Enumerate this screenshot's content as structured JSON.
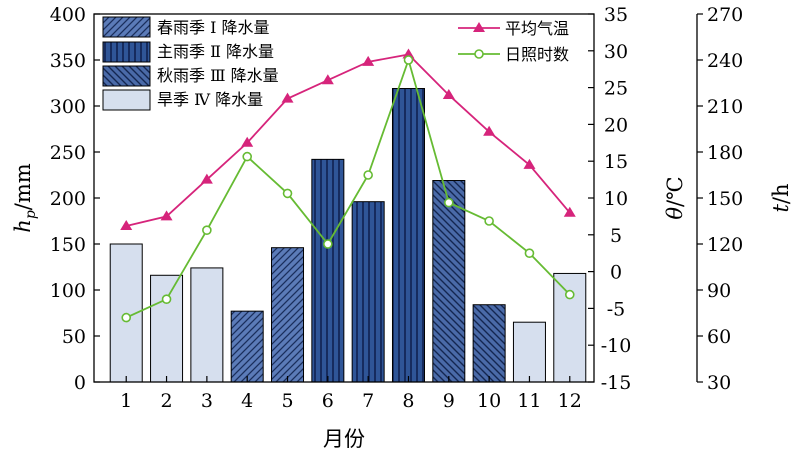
{
  "chart_data": {
    "type": "bar",
    "categories": [
      "1",
      "2",
      "3",
      "4",
      "5",
      "6",
      "7",
      "8",
      "9",
      "10",
      "11",
      "12"
    ],
    "xlabel": "月份",
    "ylabel_left": {
      "main": "h",
      "sub": "p",
      "unit": "/mm"
    },
    "ylabel_mid": {
      "symbol": "θ",
      "unit": "/℃"
    },
    "ylabel_right": {
      "symbol": "t",
      "unit": "/h"
    },
    "ylim_left": [
      0,
      400
    ],
    "ylim_mid": [
      -15,
      35
    ],
    "ylim_right": [
      30,
      270
    ],
    "yticks_left": [
      0,
      50,
      100,
      150,
      200,
      250,
      300,
      350,
      400
    ],
    "yticks_mid": [
      -15,
      -10,
      -5,
      0,
      5,
      10,
      15,
      20,
      25,
      30,
      35
    ],
    "yticks_right": [
      30,
      60,
      90,
      120,
      150,
      180,
      210,
      240,
      270
    ],
    "grid": false,
    "legend_placement": "top-left and top-right",
    "bar_series": [
      {
        "name": "春雨季 Ⅰ 降水量",
        "months": [
          4,
          5
        ],
        "values": [
          77,
          146
        ],
        "fill": "#5b7bb8",
        "pattern": "diag-fwd"
      },
      {
        "name": "主雨季 Ⅱ 降水量",
        "months": [
          6,
          7,
          8
        ],
        "values": [
          242,
          196,
          319
        ],
        "fill": "#2f5597",
        "pattern": "vertical"
      },
      {
        "name": "秋雨季 Ⅲ 降水量",
        "months": [
          9,
          10
        ],
        "values": [
          219,
          84
        ],
        "fill": "#4a6aa8",
        "pattern": "diag-back"
      },
      {
        "name": "旱季 Ⅳ 降水量",
        "months": [
          1,
          2,
          3,
          11,
          12
        ],
        "values": [
          150,
          116,
          124,
          65,
          118
        ],
        "fill": "#d6dfee",
        "pattern": "none"
      }
    ],
    "line_series": [
      {
        "name": "平均气温",
        "axis": "mid",
        "color": "#d6247b",
        "marker": "triangle",
        "values": [
          6.2,
          7.5,
          12.5,
          17.5,
          23.5,
          26.0,
          28.5,
          29.5,
          24.0,
          19.0,
          14.5,
          8.0
        ]
      },
      {
        "name": "日照时数",
        "axis": "right",
        "color": "#66bb33",
        "marker": "circle",
        "values": [
          72,
          84,
          129,
          177,
          153,
          120,
          165,
          240,
          147,
          135,
          114,
          87
        ]
      }
    ]
  }
}
